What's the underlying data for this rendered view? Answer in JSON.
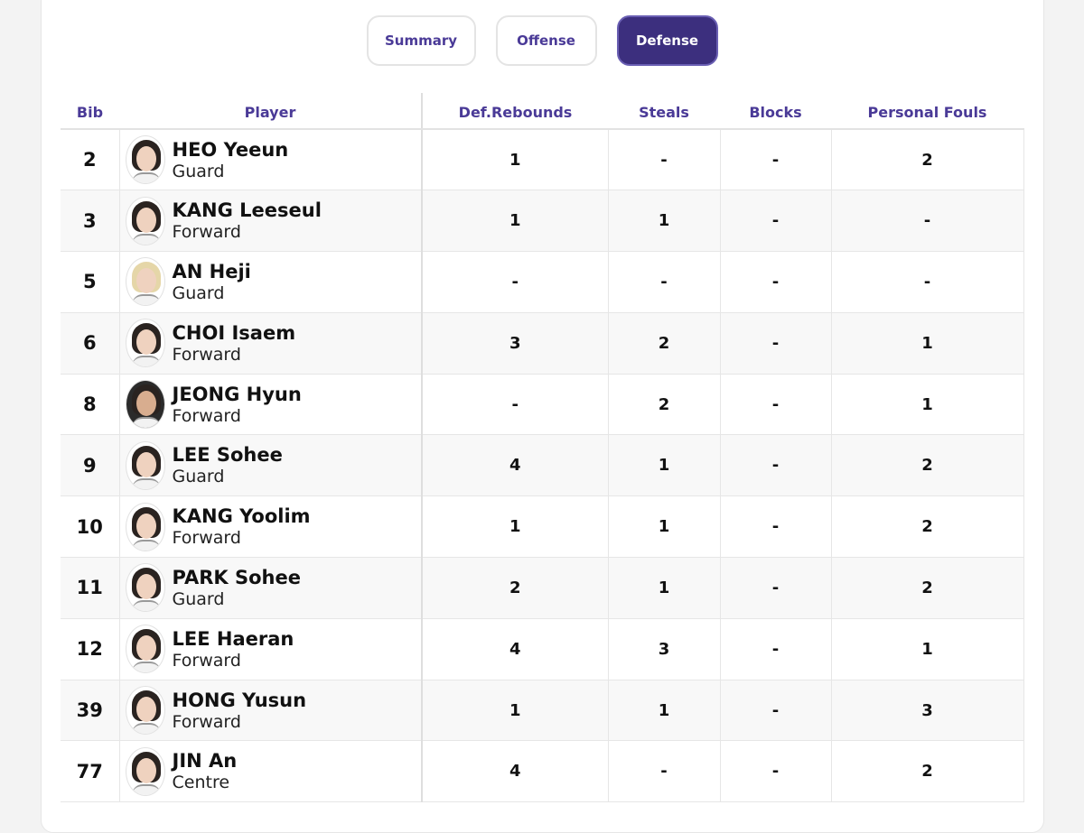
{
  "tabs": [
    {
      "label": "Summary",
      "active": false
    },
    {
      "label": "Offense",
      "active": false
    },
    {
      "label": "Defense",
      "active": true
    }
  ],
  "colors": {
    "accent": "#4a3a97",
    "active_tab_bg": "#3c2f7e"
  },
  "table": {
    "headers": {
      "bib": "Bib",
      "player": "Player",
      "def_rebounds": "Def.Rebounds",
      "steals": "Steals",
      "blocks": "Blocks",
      "personal_fouls": "Personal Fouls"
    },
    "rows": [
      {
        "bib": "2",
        "name": "HEO Yeeun",
        "position": "Guard",
        "def_rebounds": "1",
        "steals": "-",
        "blocks": "-",
        "personal_fouls": "2"
      },
      {
        "bib": "3",
        "name": "KANG Leeseul",
        "position": "Forward",
        "def_rebounds": "1",
        "steals": "1",
        "blocks": "-",
        "personal_fouls": "-"
      },
      {
        "bib": "5",
        "name": "AN Heji",
        "position": "Guard",
        "def_rebounds": "-",
        "steals": "-",
        "blocks": "-",
        "personal_fouls": "-"
      },
      {
        "bib": "6",
        "name": "CHOI Isaem",
        "position": "Forward",
        "def_rebounds": "3",
        "steals": "2",
        "blocks": "-",
        "personal_fouls": "1"
      },
      {
        "bib": "8",
        "name": "JEONG Hyun",
        "position": "Forward",
        "def_rebounds": "-",
        "steals": "2",
        "blocks": "-",
        "personal_fouls": "1"
      },
      {
        "bib": "9",
        "name": "LEE Sohee",
        "position": "Guard",
        "def_rebounds": "4",
        "steals": "1",
        "blocks": "-",
        "personal_fouls": "2"
      },
      {
        "bib": "10",
        "name": "KANG Yoolim",
        "position": "Forward",
        "def_rebounds": "1",
        "steals": "1",
        "blocks": "-",
        "personal_fouls": "2"
      },
      {
        "bib": "11",
        "name": "PARK Sohee",
        "position": "Guard",
        "def_rebounds": "2",
        "steals": "1",
        "blocks": "-",
        "personal_fouls": "2"
      },
      {
        "bib": "12",
        "name": "LEE Haeran",
        "position": "Forward",
        "def_rebounds": "4",
        "steals": "3",
        "blocks": "-",
        "personal_fouls": "1"
      },
      {
        "bib": "39",
        "name": "HONG Yusun",
        "position": "Forward",
        "def_rebounds": "1",
        "steals": "1",
        "blocks": "-",
        "personal_fouls": "3"
      },
      {
        "bib": "77",
        "name": "JIN An",
        "position": "Centre",
        "def_rebounds": "4",
        "steals": "-",
        "blocks": "-",
        "personal_fouls": "2"
      }
    ]
  }
}
